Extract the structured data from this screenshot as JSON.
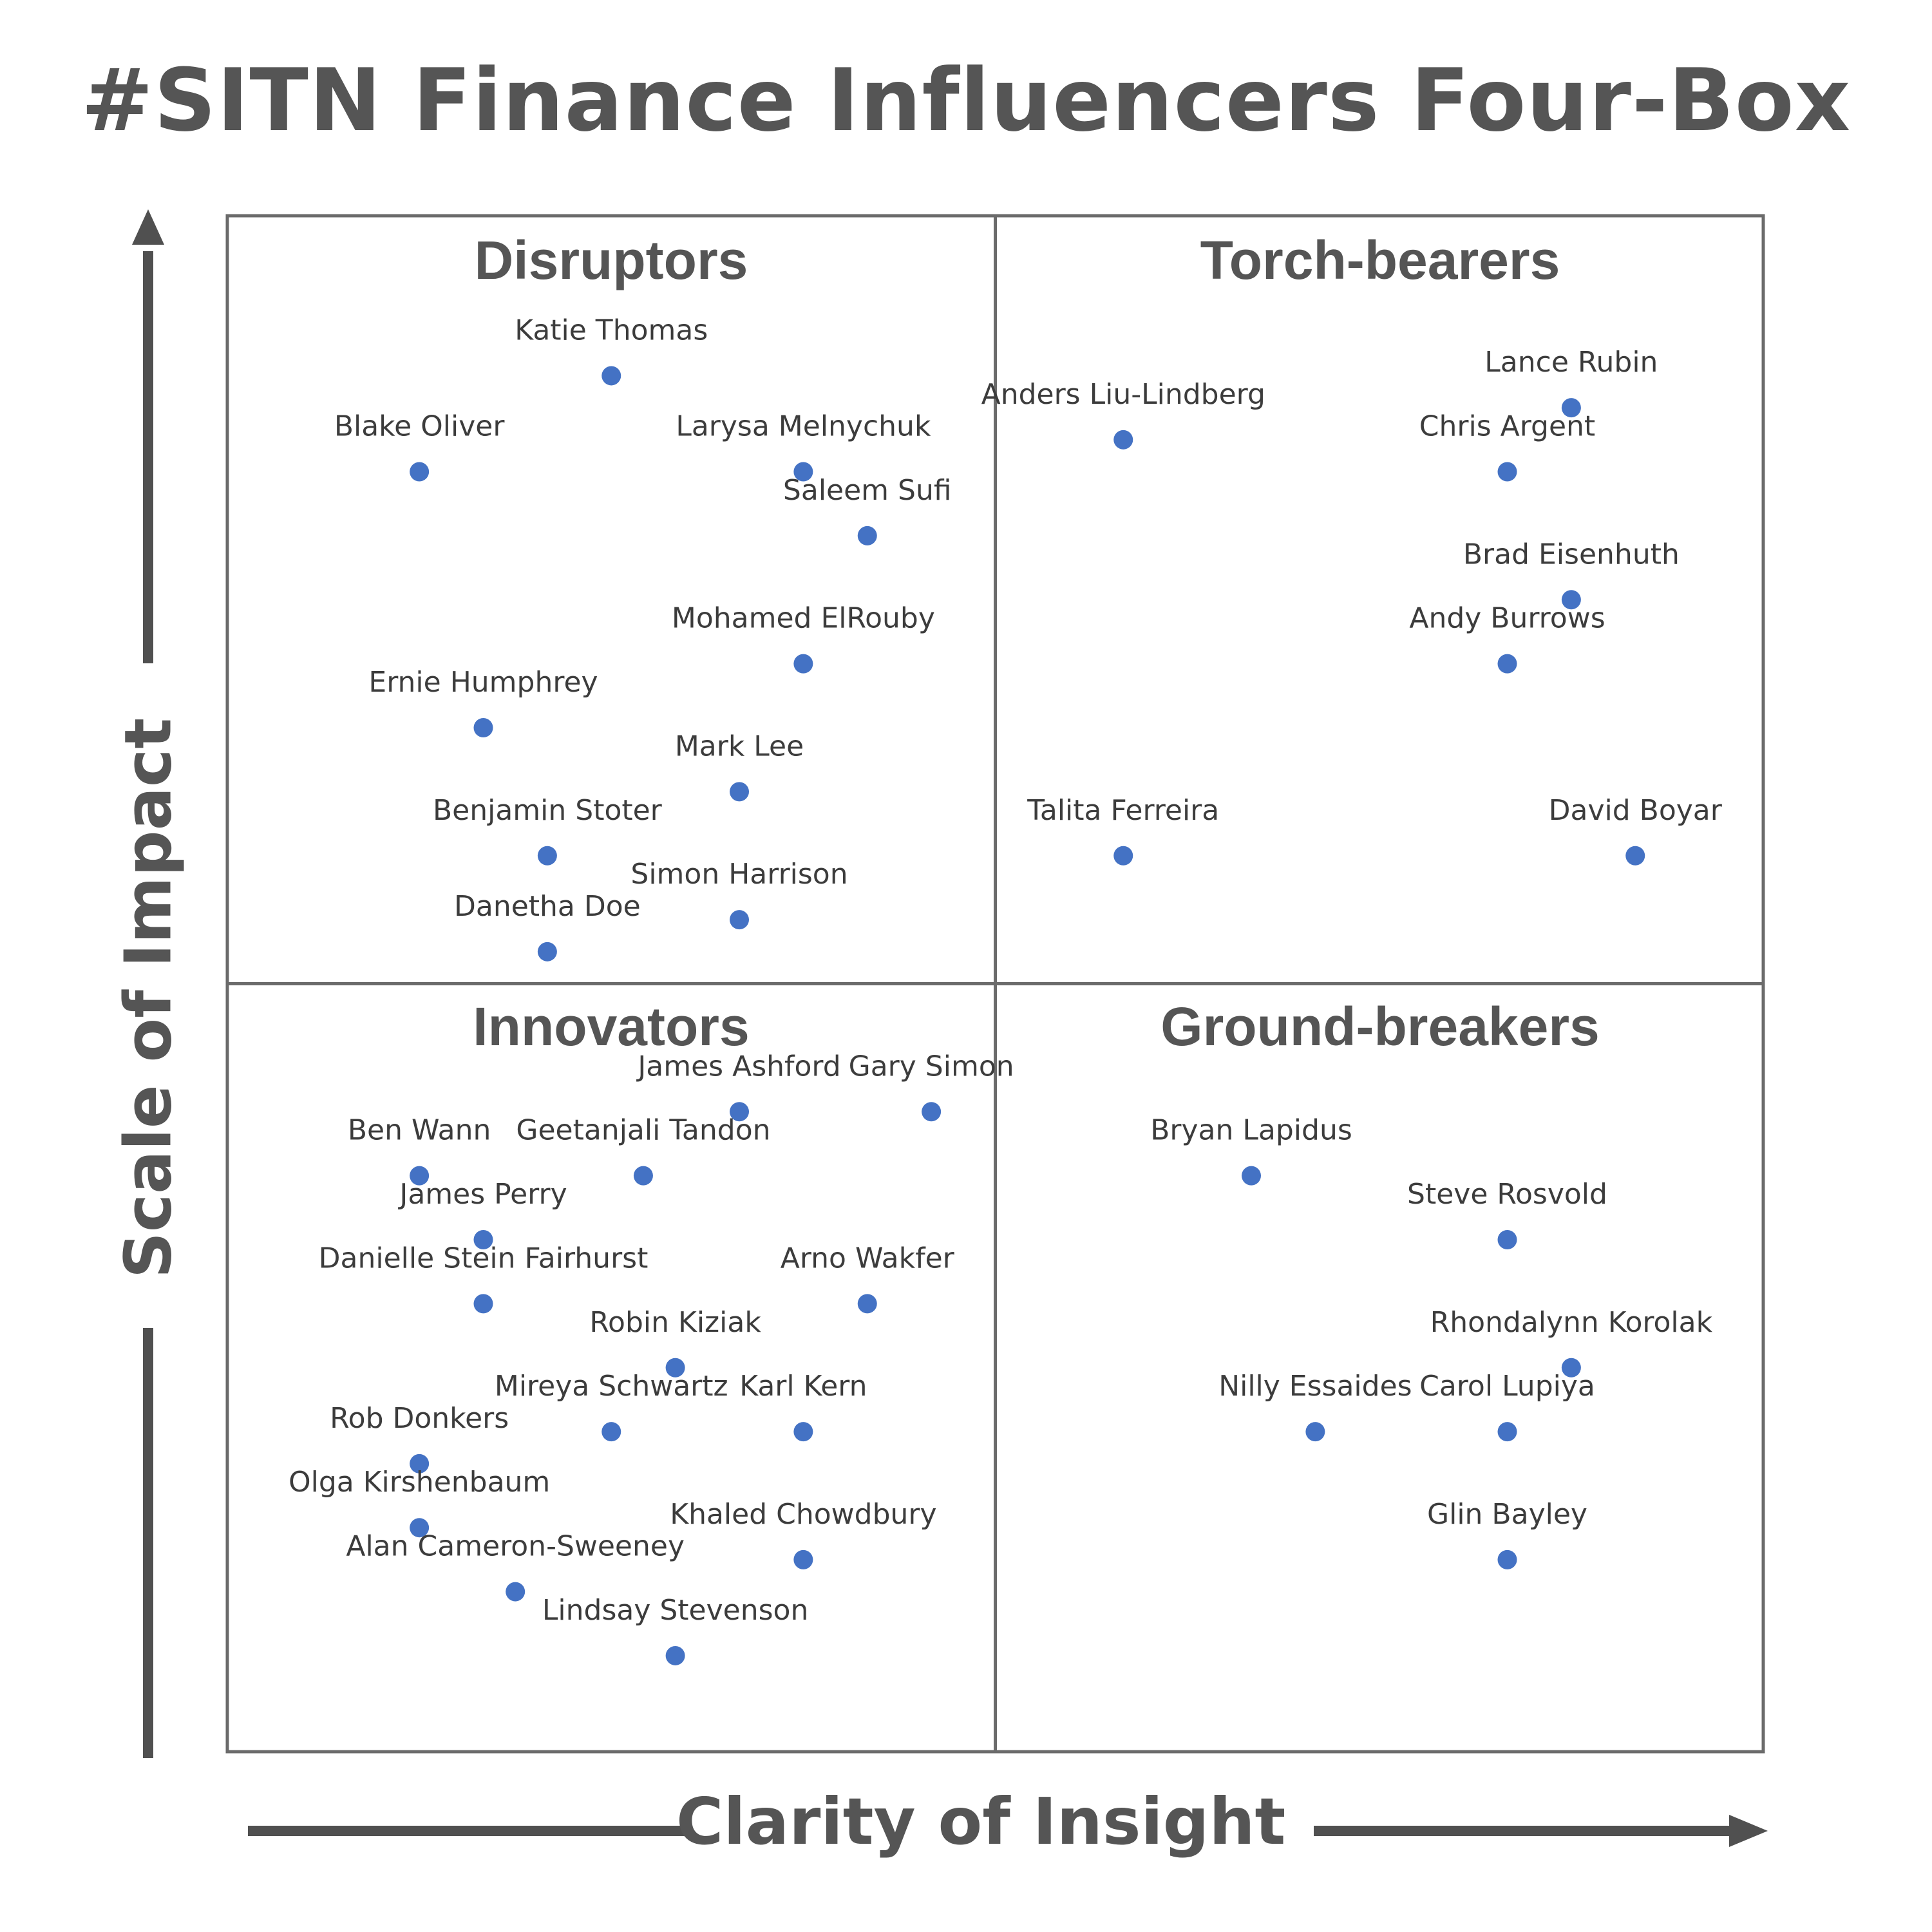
{
  "chart_data": {
    "type": "scatter",
    "title": "#SITN Finance Influencers Four-Box",
    "xlabel": "Clarity of Insight",
    "ylabel": "Scale of Impact",
    "xlim": [
      0,
      24
    ],
    "ylim": [
      0,
      24
    ],
    "grid": false,
    "dot_color": "#4472c4",
    "quadrants": [
      {
        "label": "Disruptors",
        "position": "top-left"
      },
      {
        "label": "Torch-bearers",
        "position": "top-right"
      },
      {
        "label": "Innovators",
        "position": "bottom-left"
      },
      {
        "label": "Ground-breakers",
        "position": "bottom-right"
      }
    ],
    "points": [
      {
        "name": "Katie Thomas",
        "x": 6.0,
        "y": 21.5
      },
      {
        "name": "Blake Oliver",
        "x": 3.0,
        "y": 20.0
      },
      {
        "name": "Larysa Melnychuk",
        "x": 9.0,
        "y": 20.0
      },
      {
        "name": "Saleem Sufi",
        "x": 10.0,
        "y": 19.0
      },
      {
        "name": "Mohamed ElRouby",
        "x": 9.0,
        "y": 17.0
      },
      {
        "name": "Ernie Humphrey",
        "x": 4.0,
        "y": 16.0
      },
      {
        "name": "Mark Lee",
        "x": 8.0,
        "y": 15.0
      },
      {
        "name": "Benjamin Stoter",
        "x": 5.0,
        "y": 14.0
      },
      {
        "name": "Simon Harrison",
        "x": 8.0,
        "y": 13.0
      },
      {
        "name": "Danetha Doe",
        "x": 5.0,
        "y": 12.5
      },
      {
        "name": "Anders Liu-Lindberg",
        "x": 14.0,
        "y": 20.5
      },
      {
        "name": "Lance Rubin",
        "x": 21.0,
        "y": 21.0
      },
      {
        "name": "Chris Argent",
        "x": 20.0,
        "y": 20.0
      },
      {
        "name": "Brad Eisenhuth",
        "x": 21.0,
        "y": 18.0
      },
      {
        "name": "Andy Burrows",
        "x": 20.0,
        "y": 17.0
      },
      {
        "name": "Talita Ferreira",
        "x": 14.0,
        "y": 14.0
      },
      {
        "name": "David Boyar",
        "x": 22.0,
        "y": 14.0
      },
      {
        "name": "James Ashford",
        "x": 8.0,
        "y": 10.0
      },
      {
        "name": "Gary Simon",
        "x": 11.0,
        "y": 10.0
      },
      {
        "name": "Ben Wann",
        "x": 3.0,
        "y": 9.0
      },
      {
        "name": "Geetanjali Tandon",
        "x": 6.5,
        "y": 9.0
      },
      {
        "name": "James Perry",
        "x": 4.0,
        "y": 8.0
      },
      {
        "name": "Danielle Stein Fairhurst",
        "x": 4.0,
        "y": 7.0
      },
      {
        "name": "Arno Wakfer",
        "x": 10.0,
        "y": 7.0
      },
      {
        "name": "Robin Kiziak",
        "x": 7.0,
        "y": 6.0
      },
      {
        "name": "Mireya Schwartz",
        "x": 6.0,
        "y": 5.0
      },
      {
        "name": "Karl Kern",
        "x": 9.0,
        "y": 5.0
      },
      {
        "name": "Rob Donkers",
        "x": 3.0,
        "y": 4.5
      },
      {
        "name": "Olga Kirshenbaum",
        "x": 3.0,
        "y": 3.5
      },
      {
        "name": "Khaled Chowdbury",
        "x": 9.0,
        "y": 3.0
      },
      {
        "name": "Alan Cameron-Sweeney",
        "x": 4.5,
        "y": 2.5
      },
      {
        "name": "Lindsay Stevenson",
        "x": 7.0,
        "y": 1.5
      },
      {
        "name": "Bryan Lapidus",
        "x": 16.0,
        "y": 9.0
      },
      {
        "name": "Steve Rosvold",
        "x": 20.0,
        "y": 8.0
      },
      {
        "name": "Rhondalynn Korolak",
        "x": 21.0,
        "y": 6.0
      },
      {
        "name": "Nilly Essaides",
        "x": 17.0,
        "y": 5.0
      },
      {
        "name": "Carol Lupiya",
        "x": 20.0,
        "y": 5.0
      },
      {
        "name": "Glin Bayley",
        "x": 20.0,
        "y": 3.0
      }
    ]
  }
}
